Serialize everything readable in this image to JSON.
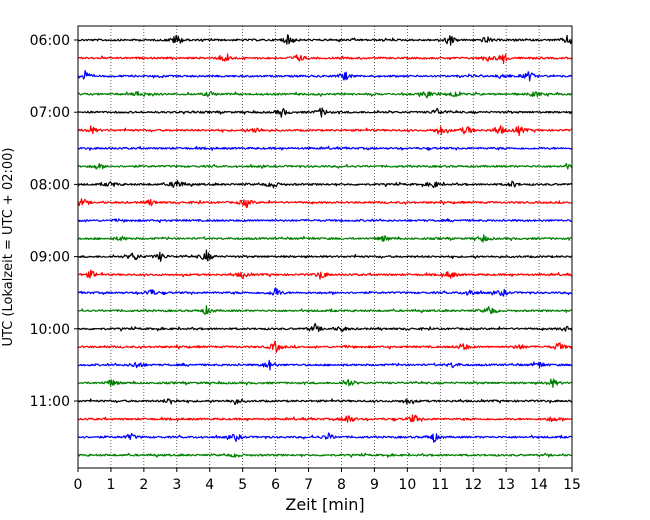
{
  "chart_data": {
    "type": "line",
    "subtype": "helicorder",
    "title": "",
    "xlabel": "Zeit  [min]",
    "ylabel": "UTC (Lokalzeit = UTC + 02:00)",
    "xlim": [
      0,
      15
    ],
    "x_ticks": [
      "0",
      "1",
      "2",
      "3",
      "4",
      "5",
      "6",
      "7",
      "8",
      "9",
      "10",
      "11",
      "12",
      "13",
      "14",
      "15"
    ],
    "y_tick_labels": [
      "06:00",
      "07:00",
      "08:00",
      "09:00",
      "10:00",
      "11:00"
    ],
    "trace_start_times": [
      "06:00",
      "06:15",
      "06:30",
      "06:45",
      "07:00",
      "07:15",
      "07:30",
      "07:45",
      "08:00",
      "08:15",
      "08:30",
      "08:45",
      "09:00",
      "09:15",
      "09:30",
      "09:45",
      "10:00",
      "10:15",
      "10:30",
      "10:45",
      "11:00",
      "11:15",
      "11:30",
      "11:45"
    ],
    "trace_color_cycle": [
      "#000000",
      "#ff0000",
      "#0000ff",
      "#008000"
    ],
    "grid": "vertical dotted at each minute",
    "legend": "none",
    "series": [
      {
        "events": [
          [
            3.0,
            1.0
          ],
          [
            6.4,
            1.0
          ],
          [
            11.3,
            0.9
          ],
          [
            12.4,
            0.6
          ],
          [
            14.9,
            1.0
          ]
        ]
      },
      {
        "events": [
          [
            4.5,
            0.9
          ],
          [
            6.7,
            0.7
          ],
          [
            12.4,
            0.5
          ],
          [
            12.9,
            1.0
          ]
        ]
      },
      {
        "events": [
          [
            0.2,
            0.9
          ],
          [
            8.1,
            0.8
          ],
          [
            12.9,
            0.6
          ],
          [
            13.7,
            0.8
          ]
        ]
      },
      {
        "events": [
          [
            1.9,
            0.8
          ],
          [
            4.0,
            0.5
          ],
          [
            10.6,
            0.6
          ],
          [
            11.4,
            0.6
          ],
          [
            13.9,
            0.5
          ]
        ]
      },
      {
        "events": [
          [
            6.2,
            0.7
          ],
          [
            7.4,
            0.8
          ],
          [
            10.9,
            0.6
          ]
        ]
      },
      {
        "events": [
          [
            0.4,
            0.7
          ],
          [
            5.4,
            0.6
          ],
          [
            11.0,
            0.9
          ],
          [
            11.8,
            0.9
          ],
          [
            12.8,
            0.9
          ],
          [
            13.4,
            0.8
          ]
        ]
      },
      {
        "events": []
      },
      {
        "events": [
          [
            0.6,
            0.5
          ],
          [
            14.9,
            0.4
          ]
        ]
      },
      {
        "events": [
          [
            1.0,
            0.5
          ],
          [
            3.0,
            1.0
          ],
          [
            5.9,
            0.7
          ],
          [
            10.8,
            0.6
          ],
          [
            13.2,
            0.5
          ]
        ]
      },
      {
        "events": [
          [
            0.1,
            0.6
          ],
          [
            2.2,
            0.5
          ],
          [
            5.1,
            0.9
          ]
        ]
      },
      {
        "events": []
      },
      {
        "events": [
          [
            1.3,
            0.4
          ],
          [
            9.3,
            0.5
          ],
          [
            12.3,
            0.6
          ]
        ]
      },
      {
        "events": [
          [
            1.7,
            0.8
          ],
          [
            2.5,
            0.7
          ],
          [
            3.9,
            1.0
          ]
        ]
      },
      {
        "events": [
          [
            0.4,
            0.7
          ],
          [
            5.0,
            0.6
          ],
          [
            7.4,
            0.7
          ],
          [
            11.3,
            0.7
          ]
        ]
      },
      {
        "events": [
          [
            2.2,
            0.7
          ],
          [
            6.0,
            0.9
          ],
          [
            11.9,
            0.7
          ],
          [
            12.9,
            0.6
          ]
        ]
      },
      {
        "events": [
          [
            3.9,
            0.7
          ],
          [
            12.5,
            0.8
          ]
        ]
      },
      {
        "events": [
          [
            7.2,
            0.6
          ],
          [
            8.0,
            0.5
          ],
          [
            14.8,
            0.4
          ]
        ]
      },
      {
        "events": [
          [
            6.0,
            1.0
          ],
          [
            11.7,
            0.7
          ],
          [
            13.4,
            0.5
          ],
          [
            14.6,
            0.8
          ]
        ]
      },
      {
        "events": [
          [
            1.8,
            0.7
          ],
          [
            5.8,
            0.9
          ],
          [
            11.4,
            0.5
          ],
          [
            14.0,
            0.5
          ]
        ]
      },
      {
        "events": [
          [
            1.0,
            0.6
          ],
          [
            8.2,
            0.7
          ],
          [
            14.4,
            0.8
          ]
        ]
      },
      {
        "events": [
          [
            2.8,
            0.6
          ],
          [
            4.8,
            0.6
          ],
          [
            10.0,
            0.5
          ]
        ]
      },
      {
        "events": [
          [
            8.2,
            0.9
          ],
          [
            10.2,
            0.8
          ],
          [
            14.4,
            0.5
          ]
        ]
      },
      {
        "events": [
          [
            1.6,
            0.6
          ],
          [
            4.8,
            0.6
          ],
          [
            7.6,
            0.6
          ],
          [
            10.8,
            0.9
          ]
        ]
      },
      {
        "events": [
          [
            4.8,
            0.4
          ]
        ]
      }
    ]
  }
}
